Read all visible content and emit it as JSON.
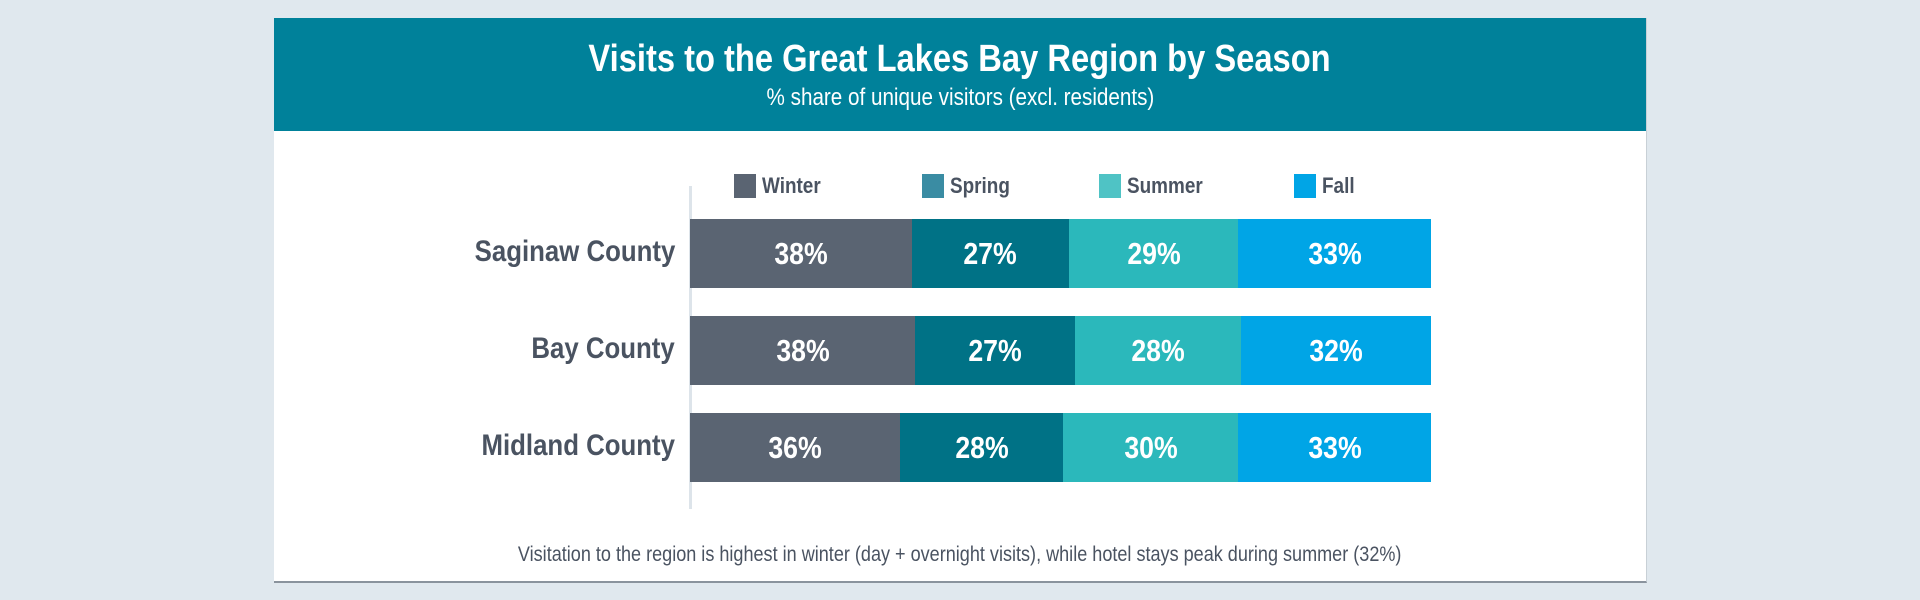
{
  "chart_data": {
    "type": "bar",
    "stacked": true,
    "orientation": "horizontal",
    "title": "Visits to the Great Lakes Bay Region by Season",
    "subtitle": "% share of unique visitors (excl. residents)",
    "categories": [
      "Saginaw County",
      "Bay County",
      "Midland County"
    ],
    "series": [
      {
        "name": "Winter",
        "color": "#5a6472",
        "values": [
          38,
          38,
          36
        ],
        "labels": [
          "38%",
          "38%",
          "36%"
        ]
      },
      {
        "name": "Spring",
        "color": "#007286",
        "legend_color": "#3a8ca3",
        "values": [
          27,
          27,
          28
        ],
        "labels": [
          "27%",
          "27%",
          "28%"
        ]
      },
      {
        "name": "Summer",
        "color": "#2bb8bb",
        "legend_color": "#4fc3c5",
        "values": [
          29,
          28,
          30
        ],
        "labels": [
          "29%",
          "28%",
          "30%"
        ]
      },
      {
        "name": "Fall",
        "color": "#00a5e6",
        "values": [
          33,
          32,
          33
        ],
        "labels": [
          "33%",
          "32%",
          "33%"
        ]
      }
    ],
    "legend_position": "top",
    "footnote": "Visitation to the region is highest in winter (day + overnight visits), while hotel stays peak during summer (32%)"
  }
}
